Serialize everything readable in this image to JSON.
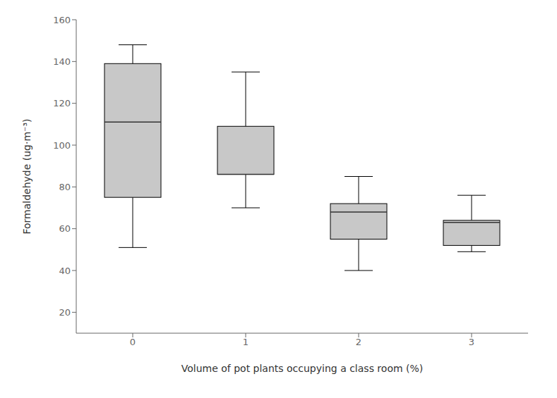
{
  "chart_data": {
    "type": "box",
    "xlabel": "Volume of pot plants occupying a class room (%)",
    "ylabel": "Formaldehyde (ug·m⁻³)",
    "categories": [
      "0",
      "1",
      "2",
      "3"
    ],
    "whislo": [
      51,
      70,
      40,
      49
    ],
    "q1": [
      75,
      86,
      55,
      52
    ],
    "median": [
      111,
      86,
      68,
      63
    ],
    "q3": [
      139,
      109,
      72,
      64
    ],
    "whishi": [
      148,
      135,
      85,
      76
    ],
    "color": "#c8c8c8",
    "ylim": [
      10,
      160
    ],
    "yticks": [
      20,
      40,
      60,
      80,
      100,
      120,
      140,
      160
    ],
    "grid": false
  }
}
